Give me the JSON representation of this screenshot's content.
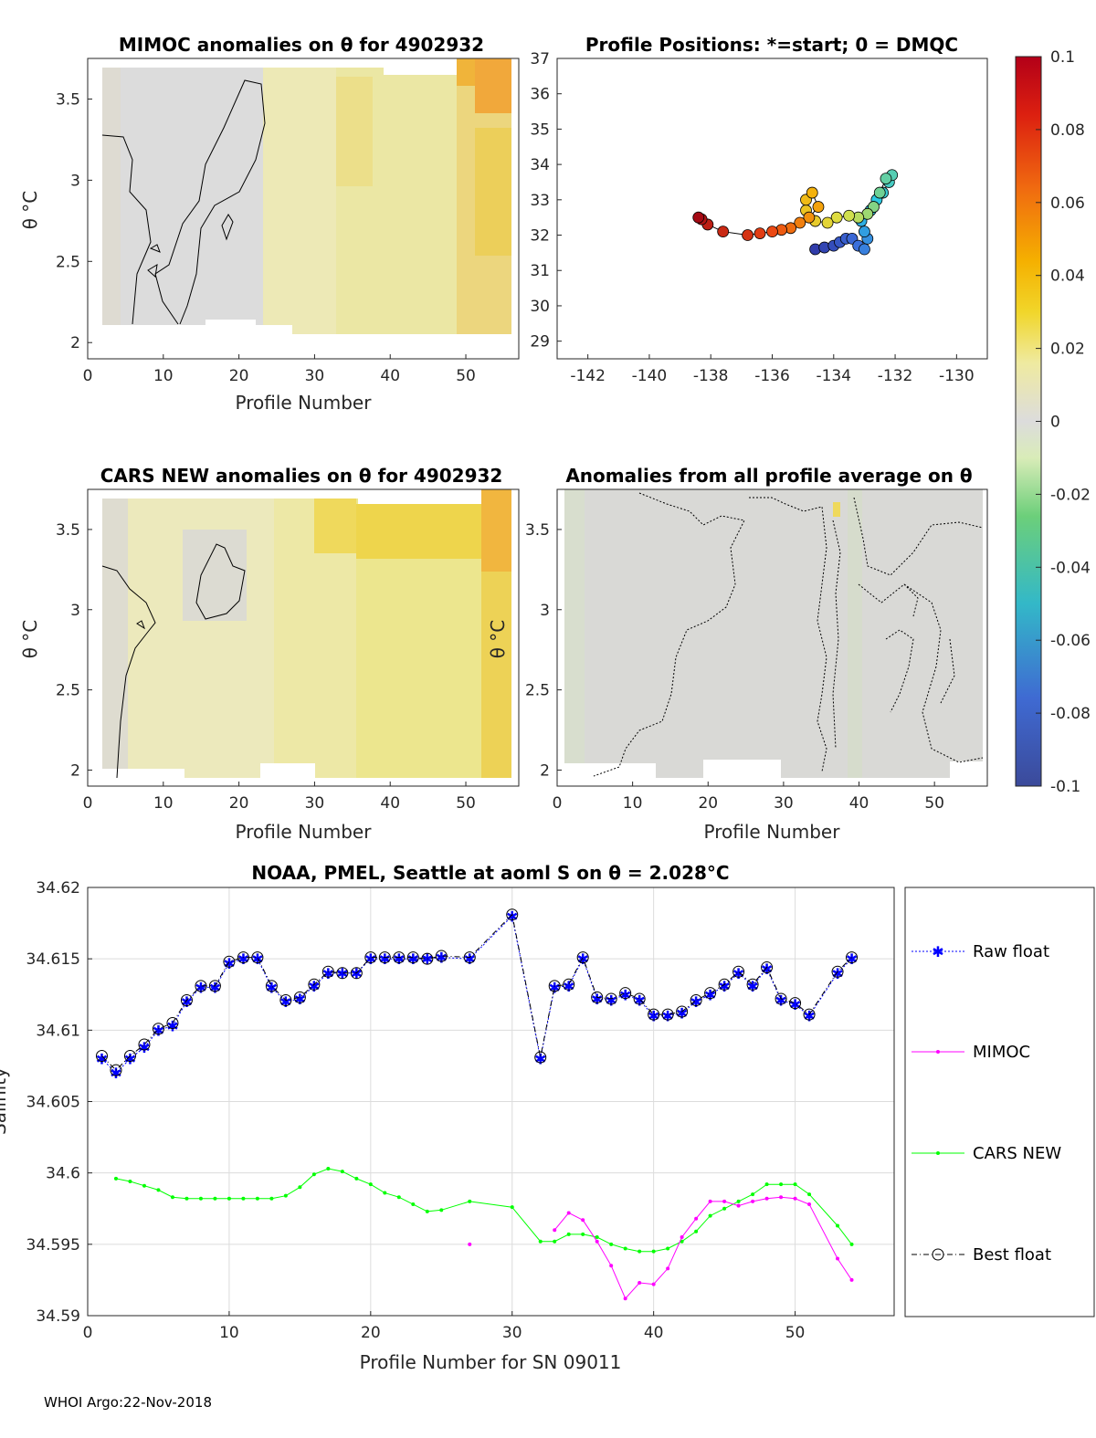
{
  "footer": "WHOI Argo:22-Nov-2018",
  "colors": {
    "raw_float": "#0000ff",
    "mimoc": "#ff00ff",
    "cars": "#00ff00",
    "best_float": "#000000"
  },
  "chart_data": [
    {
      "id": "mimoc_anom",
      "type": "heatmap",
      "title": "MIMOC anomalies on θ  for 4902932",
      "xlabel": "Profile Number",
      "ylabel": "θ °C",
      "xlim": [
        0,
        57
      ],
      "ylim": [
        1.9,
        3.75
      ],
      "xticks": [
        "0",
        "10",
        "20",
        "30",
        "40",
        "50"
      ],
      "yticks": [
        "2",
        "2.5",
        "3",
        "3.5"
      ],
      "ytick_values": [
        2,
        2.5,
        3,
        3.5
      ]
    },
    {
      "id": "positions",
      "type": "scatter",
      "title": "Profile Positions: *=start; 0 = DMQC",
      "xlim": [
        -143,
        -129
      ],
      "ylim": [
        28.5,
        37
      ],
      "xticks": [
        "-142",
        "-140",
        "-138",
        "-136",
        "-134",
        "-132",
        "-130"
      ],
      "xtick_values": [
        -142,
        -140,
        -138,
        -136,
        -134,
        -132,
        -130
      ],
      "yticks": [
        "29",
        "30",
        "31",
        "32",
        "33",
        "34",
        "35",
        "36",
        "37"
      ],
      "ytick_values": [
        29,
        30,
        31,
        32,
        33,
        34,
        35,
        36,
        37
      ],
      "lon": [
        -134.6,
        -134.3,
        -134.0,
        -133.8,
        -133.6,
        -133.4,
        -133.2,
        -133.0,
        -132.9,
        -133.0,
        -133.1,
        -132.8,
        -132.6,
        -132.4,
        -132.2,
        -132.1,
        -132.3,
        -132.5,
        -132.7,
        -132.9,
        -133.2,
        -133.5,
        -133.9,
        -134.2,
        -134.6,
        -134.9,
        -134.9,
        -134.7,
        -134.5,
        -134.8,
        -135.1,
        -135.4,
        -135.7,
        -136.0,
        -136.4,
        -136.8,
        -137.6,
        -138.1,
        -138.3,
        -138.4
      ],
      "lat": [
        31.6,
        31.65,
        31.7,
        31.8,
        31.9,
        31.9,
        31.7,
        31.6,
        31.9,
        32.1,
        32.4,
        32.7,
        33.0,
        33.2,
        33.5,
        33.7,
        33.6,
        33.2,
        32.8,
        32.6,
        32.5,
        32.55,
        32.5,
        32.35,
        32.4,
        32.7,
        33.0,
        33.2,
        32.8,
        32.5,
        32.35,
        32.2,
        32.15,
        32.1,
        32.05,
        32.0,
        32.1,
        32.3,
        32.45,
        32.5
      ]
    },
    {
      "id": "cars_anom",
      "type": "heatmap",
      "title": "CARS NEW anomalies on θ for 4902932",
      "xlabel": "Profile Number",
      "ylabel": "θ °C",
      "xlim": [
        0,
        57
      ],
      "ylim": [
        1.9,
        3.75
      ],
      "xticks": [
        "0",
        "10",
        "20",
        "30",
        "40",
        "50"
      ],
      "yticks": [
        "2",
        "2.5",
        "3",
        "3.5"
      ],
      "ytick_values": [
        2,
        2.5,
        3,
        3.5
      ]
    },
    {
      "id": "profile_avg_anom",
      "type": "heatmap",
      "title": "Anomalies from all profile average on θ",
      "xlabel": "Profile Number",
      "ylabel": "θ °C",
      "xlim": [
        0,
        57
      ],
      "ylim": [
        1.9,
        3.75
      ],
      "xticks": [
        "0",
        "10",
        "20",
        "30",
        "40",
        "50"
      ],
      "yticks": [
        "2",
        "2.5",
        "3",
        "3.5"
      ],
      "ytick_values": [
        2,
        2.5,
        3,
        3.5
      ]
    },
    {
      "id": "colorbar",
      "type": "heatmap",
      "range": [
        -0.1,
        0.1
      ],
      "ticks": [
        "0.1",
        "0.08",
        "0.06",
        "0.04",
        "0.02",
        "0",
        "-0.02",
        "-0.04",
        "-0.06",
        "-0.08",
        "-0.1"
      ],
      "tick_values": [
        0.1,
        0.08,
        0.06,
        0.04,
        0.02,
        0,
        -0.02,
        -0.04,
        -0.06,
        -0.08,
        -0.1
      ]
    },
    {
      "id": "salinity",
      "type": "line",
      "title": "NOAA, PMEL, Seattle at aoml S on θ = 2.028°C",
      "xlabel": "Profile Number for SN 09011",
      "ylabel": "Salinity",
      "xlim": [
        0,
        57
      ],
      "ylim": [
        34.59,
        34.62
      ],
      "xticks": [
        "0",
        "10",
        "20",
        "30",
        "40",
        "50"
      ],
      "xtick_values": [
        0,
        10,
        20,
        30,
        40,
        50
      ],
      "yticks": [
        "34.59",
        "34.595",
        "34.6",
        "34.605",
        "34.61",
        "34.615",
        "34.62"
      ],
      "ytick_values": [
        34.59,
        34.595,
        34.6,
        34.605,
        34.61,
        34.615,
        34.62
      ],
      "legend_position": "outside-right",
      "series": [
        {
          "name": "Raw float",
          "x": [
            1,
            2,
            3,
            4,
            5,
            6,
            7,
            8,
            9,
            10,
            11,
            12,
            13,
            14,
            15,
            16,
            17,
            18,
            19,
            20,
            21,
            22,
            23,
            24,
            25,
            27,
            30,
            32,
            33,
            34,
            35,
            36,
            37,
            38,
            39,
            40,
            41,
            42,
            43,
            44,
            45,
            46,
            47,
            48,
            49,
            50,
            51,
            53,
            54
          ],
          "values": [
            34.608,
            34.607,
            34.608,
            34.6088,
            34.61,
            34.6103,
            34.612,
            34.613,
            34.613,
            34.6147,
            34.615,
            34.615,
            34.613,
            34.612,
            34.6122,
            34.6131,
            34.614,
            34.614,
            34.614,
            34.615,
            34.615,
            34.615,
            34.615,
            34.615,
            34.6151,
            34.615,
            34.618,
            34.608,
            34.613,
            34.6131,
            34.615,
            34.6122,
            34.6121,
            34.6125,
            34.6121,
            34.611,
            34.611,
            34.6112,
            34.612,
            34.6125,
            34.6131,
            34.614,
            34.6131,
            34.6143,
            34.6121,
            34.6118,
            34.611,
            34.614,
            34.615
          ]
        },
        {
          "name": "MIMOC",
          "x": [
            27,
            33,
            34,
            35,
            36,
            37,
            38,
            39,
            40,
            41,
            42,
            43,
            44,
            45,
            46,
            47,
            48,
            49,
            50,
            51,
            53,
            54
          ],
          "values": [
            34.595,
            34.596,
            34.5972,
            34.5967,
            34.5952,
            34.5935,
            34.5912,
            34.5923,
            34.5922,
            34.5933,
            34.5955,
            34.5968,
            34.598,
            34.598,
            34.5977,
            34.598,
            34.5982,
            34.5983,
            34.5982,
            34.5978,
            34.594,
            34.5925
          ]
        },
        {
          "name": "CARS NEW",
          "x": [
            2,
            3,
            4,
            5,
            6,
            7,
            8,
            9,
            10,
            11,
            12,
            13,
            14,
            15,
            16,
            17,
            18,
            19,
            20,
            21,
            22,
            23,
            24,
            25,
            27,
            30,
            32,
            33,
            34,
            35,
            36,
            37,
            38,
            39,
            40,
            41,
            42,
            43,
            44,
            45,
            46,
            47,
            48,
            49,
            50,
            51,
            53,
            54
          ],
          "values": [
            34.5996,
            34.5994,
            34.5991,
            34.5988,
            34.5983,
            34.5982,
            34.5982,
            34.5982,
            34.5982,
            34.5982,
            34.5982,
            34.5982,
            34.5984,
            34.599,
            34.5999,
            34.6003,
            34.6001,
            34.5996,
            34.5992,
            34.5986,
            34.5983,
            34.5978,
            34.5973,
            34.5974,
            34.598,
            34.5976,
            34.5952,
            34.5952,
            34.5957,
            34.5957,
            34.5955,
            34.595,
            34.5947,
            34.5945,
            34.5945,
            34.5947,
            34.5952,
            34.5959,
            34.597,
            34.5975,
            34.598,
            34.5985,
            34.5992,
            34.5992,
            34.5992,
            34.5985,
            34.5963,
            34.595
          ]
        },
        {
          "name": "Best float",
          "x": [
            1,
            2,
            3,
            4,
            5,
            6,
            7,
            8,
            9,
            10,
            11,
            12,
            13,
            14,
            15,
            16,
            17,
            18,
            19,
            20,
            21,
            22,
            23,
            24,
            25,
            27,
            30,
            32,
            33,
            34,
            35,
            36,
            37,
            38,
            39,
            40,
            41,
            42,
            43,
            44,
            45,
            46,
            47,
            48,
            49,
            50,
            51,
            53,
            54
          ],
          "values": [
            34.6082,
            34.6072,
            34.6082,
            34.609,
            34.6101,
            34.6105,
            34.6121,
            34.6131,
            34.6131,
            34.6148,
            34.6151,
            34.6151,
            34.6131,
            34.6121,
            34.6123,
            34.6132,
            34.6141,
            34.614,
            34.614,
            34.6151,
            34.6151,
            34.6151,
            34.6151,
            34.615,
            34.6152,
            34.6151,
            34.6181,
            34.6081,
            34.6131,
            34.6132,
            34.6151,
            34.6123,
            34.6122,
            34.6126,
            34.6122,
            34.6111,
            34.6111,
            34.6113,
            34.6121,
            34.6126,
            34.6132,
            34.6141,
            34.6132,
            34.6144,
            34.6122,
            34.6119,
            34.6111,
            34.6141,
            34.6151
          ]
        }
      ]
    }
  ]
}
